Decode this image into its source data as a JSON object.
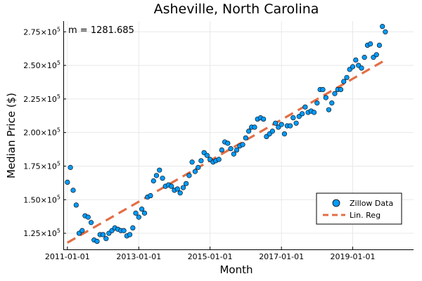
{
  "chart_data": {
    "type": "scatter",
    "title": "Asheville, North Carolina",
    "xlabel": "Month",
    "ylabel": "Median Price ($)",
    "annotation": "m = 1281.685",
    "xlim": [
      "2010-11-20",
      "2020-09-15"
    ],
    "ylim": [
      113000,
      283000
    ],
    "grid": true,
    "legend_position": "bottom-right",
    "x_ticks": [
      {
        "date": "2011-01-01",
        "label": "2011-01-01"
      },
      {
        "date": "2013-01-01",
        "label": "2013-01-01"
      },
      {
        "date": "2015-01-01",
        "label": "2015-01-01"
      },
      {
        "date": "2017-01-01",
        "label": "2017-01-01"
      },
      {
        "date": "2019-01-01",
        "label": "2019-01-01"
      }
    ],
    "y_ticks": [
      {
        "value": 125000,
        "mantissa": "1.25",
        "exp": "5"
      },
      {
        "value": 150000,
        "mantissa": "1.50",
        "exp": "5"
      },
      {
        "value": 175000,
        "mantissa": "1.75",
        "exp": "5"
      },
      {
        "value": 200000,
        "mantissa": "2.00",
        "exp": "5"
      },
      {
        "value": 225000,
        "mantissa": "2.25",
        "exp": "5"
      },
      {
        "value": 250000,
        "mantissa": "2.50",
        "exp": "5"
      },
      {
        "value": 275000,
        "mantissa": "2.75",
        "exp": "5"
      }
    ],
    "series": [
      {
        "name": "Zillow Data",
        "kind": "scatter",
        "color": "#009af9",
        "points": [
          {
            "x": "2011-01",
            "y": 163000
          },
          {
            "x": "2011-02",
            "y": 174000
          },
          {
            "x": "2011-03",
            "y": 157000
          },
          {
            "x": "2011-04",
            "y": 146000
          },
          {
            "x": "2011-05",
            "y": 125000
          },
          {
            "x": "2011-06",
            "y": 127000
          },
          {
            "x": "2011-07",
            "y": 138000
          },
          {
            "x": "2011-08",
            "y": 137000
          },
          {
            "x": "2011-09",
            "y": 133000
          },
          {
            "x": "2011-10",
            "y": 120000
          },
          {
            "x": "2011-11",
            "y": 119000
          },
          {
            "x": "2011-12",
            "y": 124000
          },
          {
            "x": "2012-01",
            "y": 124000
          },
          {
            "x": "2012-02",
            "y": 121000
          },
          {
            "x": "2012-03",
            "y": 125000
          },
          {
            "x": "2012-04",
            "y": 127000
          },
          {
            "x": "2012-05",
            "y": 129000
          },
          {
            "x": "2012-06",
            "y": 128000
          },
          {
            "x": "2012-07",
            "y": 127000
          },
          {
            "x": "2012-08",
            "y": 127000
          },
          {
            "x": "2012-09",
            "y": 123000
          },
          {
            "x": "2012-10",
            "y": 124000
          },
          {
            "x": "2012-11",
            "y": 129000
          },
          {
            "x": "2012-12",
            "y": 140000
          },
          {
            "x": "2013-01",
            "y": 137000
          },
          {
            "x": "2013-02",
            "y": 143000
          },
          {
            "x": "2013-03",
            "y": 140000
          },
          {
            "x": "2013-04",
            "y": 152000
          },
          {
            "x": "2013-05",
            "y": 153000
          },
          {
            "x": "2013-06",
            "y": 164000
          },
          {
            "x": "2013-07",
            "y": 168000
          },
          {
            "x": "2013-08",
            "y": 172000
          },
          {
            "x": "2013-09",
            "y": 166000
          },
          {
            "x": "2013-10",
            "y": 160000
          },
          {
            "x": "2013-11",
            "y": 161000
          },
          {
            "x": "2013-12",
            "y": 160000
          },
          {
            "x": "2014-01",
            "y": 157000
          },
          {
            "x": "2014-02",
            "y": 158000
          },
          {
            "x": "2014-03",
            "y": 155000
          },
          {
            "x": "2014-04",
            "y": 159000
          },
          {
            "x": "2014-05",
            "y": 162000
          },
          {
            "x": "2014-06",
            "y": 168000
          },
          {
            "x": "2014-07",
            "y": 178000
          },
          {
            "x": "2014-08",
            "y": 171000
          },
          {
            "x": "2014-09",
            "y": 174000
          },
          {
            "x": "2014-10",
            "y": 179000
          },
          {
            "x": "2014-11",
            "y": 185000
          },
          {
            "x": "2014-12",
            "y": 183000
          },
          {
            "x": "2015-01",
            "y": 180000
          },
          {
            "x": "2015-02",
            "y": 178000
          },
          {
            "x": "2015-03",
            "y": 179000
          },
          {
            "x": "2015-04",
            "y": 180000
          },
          {
            "x": "2015-05",
            "y": 187000
          },
          {
            "x": "2015-06",
            "y": 193000
          },
          {
            "x": "2015-07",
            "y": 192000
          },
          {
            "x": "2015-08",
            "y": 188000
          },
          {
            "x": "2015-09",
            "y": 184000
          },
          {
            "x": "2015-10",
            "y": 187000
          },
          {
            "x": "2015-11",
            "y": 190000
          },
          {
            "x": "2015-12",
            "y": 191000
          },
          {
            "x": "2016-01",
            "y": 196000
          },
          {
            "x": "2016-02",
            "y": 201000
          },
          {
            "x": "2016-03",
            "y": 204000
          },
          {
            "x": "2016-04",
            "y": 204000
          },
          {
            "x": "2016-05",
            "y": 210000
          },
          {
            "x": "2016-06",
            "y": 211000
          },
          {
            "x": "2016-07",
            "y": 210000
          },
          {
            "x": "2016-08",
            "y": 197000
          },
          {
            "x": "2016-09",
            "y": 199000
          },
          {
            "x": "2016-10",
            "y": 201000
          },
          {
            "x": "2016-11",
            "y": 207000
          },
          {
            "x": "2016-12",
            "y": 204000
          },
          {
            "x": "2017-01",
            "y": 206000
          },
          {
            "x": "2017-02",
            "y": 199000
          },
          {
            "x": "2017-03",
            "y": 205000
          },
          {
            "x": "2017-04",
            "y": 205000
          },
          {
            "x": "2017-05",
            "y": 211000
          },
          {
            "x": "2017-06",
            "y": 207000
          },
          {
            "x": "2017-07",
            "y": 212000
          },
          {
            "x": "2017-08",
            "y": 214000
          },
          {
            "x": "2017-09",
            "y": 219000
          },
          {
            "x": "2017-10",
            "y": 215000
          },
          {
            "x": "2017-11",
            "y": 216000
          },
          {
            "x": "2017-12",
            "y": 215000
          },
          {
            "x": "2018-01",
            "y": 222000
          },
          {
            "x": "2018-02",
            "y": 232000
          },
          {
            "x": "2018-03",
            "y": 232000
          },
          {
            "x": "2018-04",
            "y": 226000
          },
          {
            "x": "2018-05",
            "y": 217000
          },
          {
            "x": "2018-06",
            "y": 222000
          },
          {
            "x": "2018-07",
            "y": 229000
          },
          {
            "x": "2018-08",
            "y": 232000
          },
          {
            "x": "2018-09",
            "y": 232000
          },
          {
            "x": "2018-10",
            "y": 238000
          },
          {
            "x": "2018-11",
            "y": 241000
          },
          {
            "x": "2018-12",
            "y": 247000
          },
          {
            "x": "2019-01",
            "y": 249000
          },
          {
            "x": "2019-02",
            "y": 254000
          },
          {
            "x": "2019-03",
            "y": 250000
          },
          {
            "x": "2019-04",
            "y": 248000
          },
          {
            "x": "2019-05",
            "y": 256000
          },
          {
            "x": "2019-06",
            "y": 265000
          },
          {
            "x": "2019-07",
            "y": 266000
          },
          {
            "x": "2019-08",
            "y": 256000
          },
          {
            "x": "2019-09",
            "y": 258000
          },
          {
            "x": "2019-10",
            "y": 265000
          },
          {
            "x": "2019-11",
            "y": 279000
          },
          {
            "x": "2019-12",
            "y": 275000
          }
        ]
      },
      {
        "name": "Lin. Reg",
        "kind": "line",
        "dash": true,
        "color": "#e26f46",
        "points": [
          {
            "x": "2011-01",
            "y": 118000
          },
          {
            "x": "2019-12",
            "y": 254000
          }
        ]
      }
    ]
  }
}
